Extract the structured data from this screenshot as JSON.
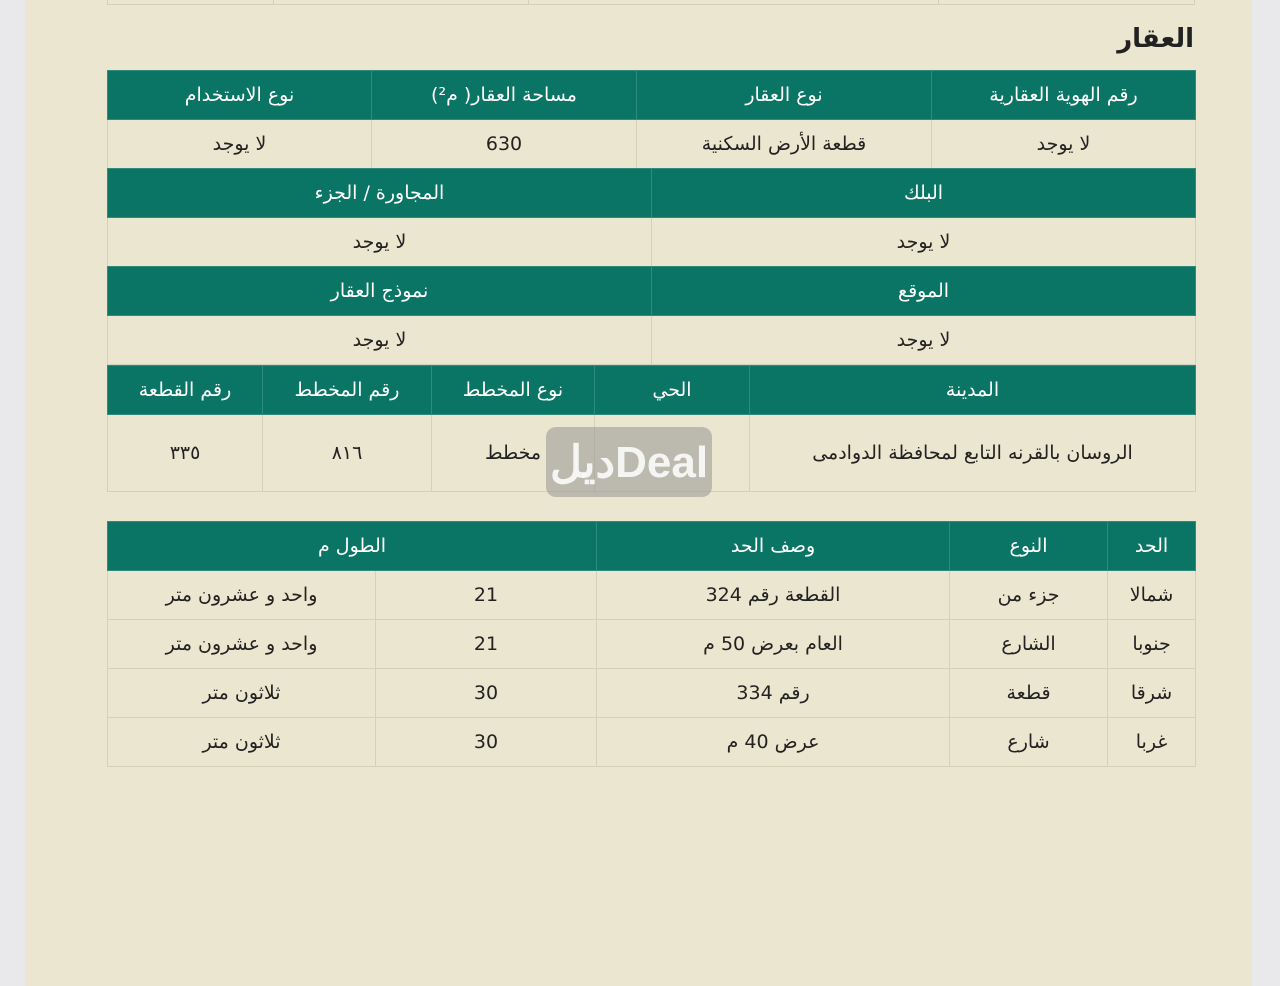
{
  "section_title": "العقار",
  "table1": {
    "headers": [
      "رقم الهوية العقارية",
      "نوع العقار",
      "مساحة العقار( م²)",
      "نوع الاستخدام"
    ],
    "values": [
      "لا يوجد",
      "قطعة الأرض السكنية",
      "630",
      "لا يوجد"
    ]
  },
  "table2": {
    "headers": [
      "البلك",
      "المجاورة / الجزء"
    ],
    "values": [
      "لا يوجد",
      "لا يوجد"
    ]
  },
  "table3": {
    "headers": [
      "الموقع",
      "نموذج العقار"
    ],
    "values": [
      "لا يوجد",
      "لا يوجد"
    ]
  },
  "table4": {
    "headers": [
      "المدينة",
      "الحي",
      "نوع المخطط",
      "رقم المخطط",
      "رقم القطعة"
    ],
    "values": [
      "الروسان بالقرنه التابع لمحافظة الدوادمى",
      "",
      "مخطط",
      "٨١٦",
      "٣٣٥"
    ]
  },
  "boundaries": {
    "headers": [
      "الحد",
      "النوع",
      "وصف الحد",
      "الطول م"
    ],
    "rows": [
      [
        "شمالا",
        "جزء من",
        "القطعة رقم 324",
        "21",
        "واحد و عشرون متر"
      ],
      [
        "جنوبا",
        "الشارع",
        "العام بعرض 50 م",
        "21",
        "واحد و عشرون متر"
      ],
      [
        "شرقا",
        "قطعة",
        "رقم 334",
        "30",
        "ثلاثون متر"
      ],
      [
        "غربا",
        "شارع",
        "عرض 40 م",
        "30",
        "ثلاثون متر"
      ]
    ]
  },
  "watermark": "ديلDeal",
  "colors": {
    "header": "#0a7565",
    "paper": "#ebe6cf"
  }
}
